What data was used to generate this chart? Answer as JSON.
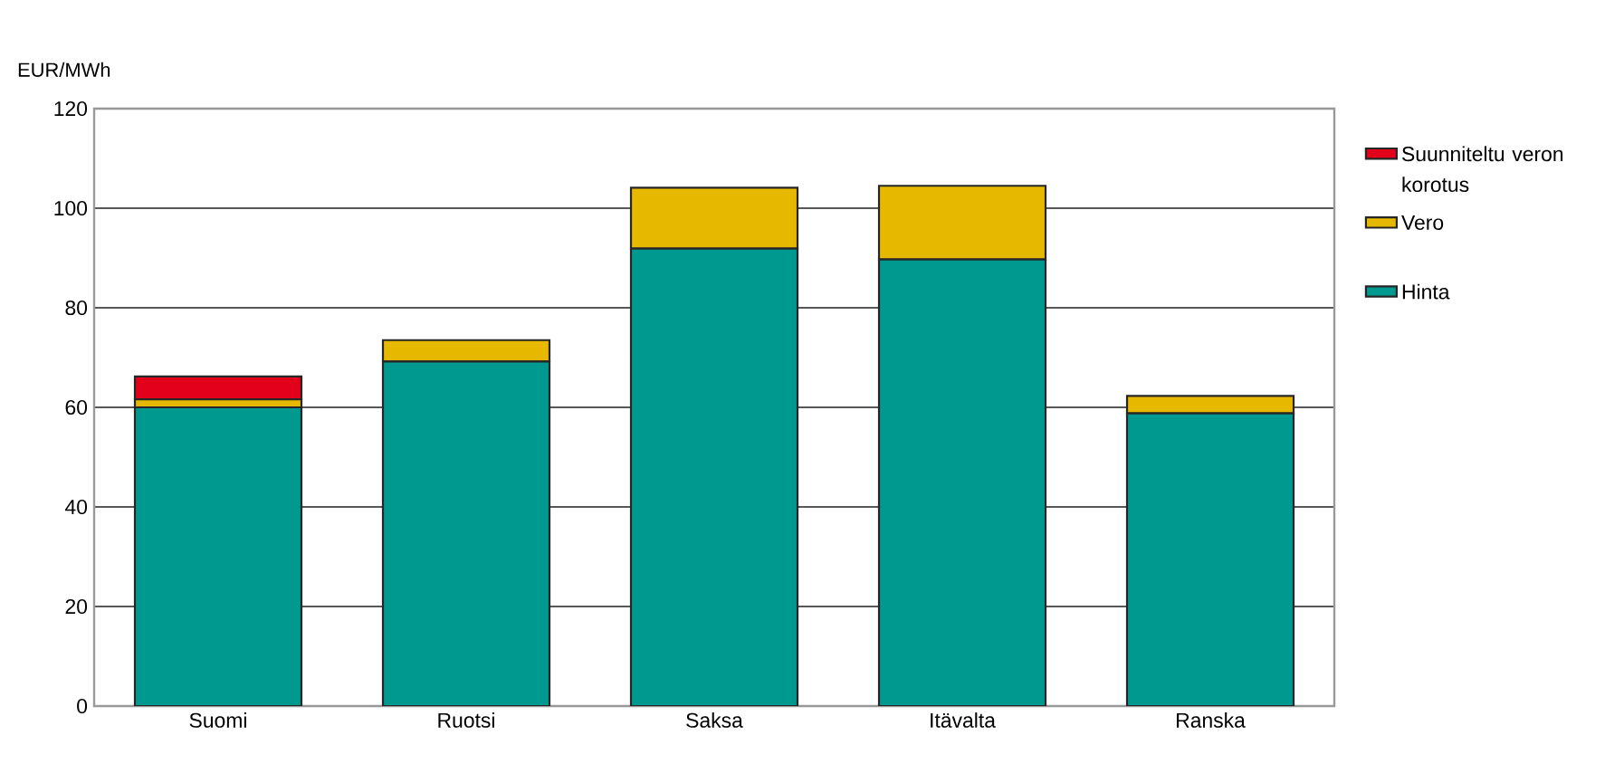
{
  "chart_data": {
    "type": "bar",
    "stacked": true,
    "ylabel": "EUR/MWh",
    "categories": [
      "Suomi",
      "Ruotsi",
      "Saksa",
      "Itävalta",
      "Ranska"
    ],
    "series": [
      {
        "name": "Hinta",
        "color": "#009990",
        "values": [
          60,
          69.2,
          91.9,
          89.7,
          58.8
        ]
      },
      {
        "name": "Vero",
        "color": "#e6b800",
        "values": [
          1.6,
          4.3,
          12.2,
          14.8,
          3.5
        ]
      },
      {
        "name": "Suunniteltu veron korotus",
        "color": "#e2001a",
        "values": [
          4.6,
          null,
          null,
          null,
          null
        ]
      }
    ],
    "ylim": [
      0,
      120
    ],
    "yticks": [
      0,
      20,
      40,
      60,
      80,
      100,
      120
    ],
    "grid": "y",
    "legend": "right"
  }
}
